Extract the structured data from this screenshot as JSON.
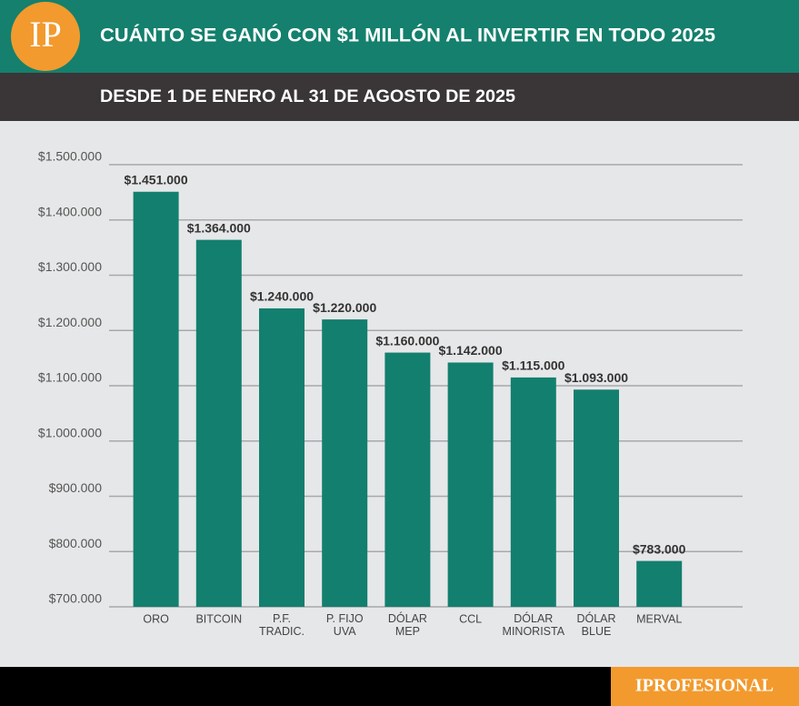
{
  "header": {
    "logo": "IP",
    "title": "CUÁNTO SE GANÓ CON $1 MILLÓN AL INVERTIR EN TODO 2025",
    "subtitle": "DESDE 1 DE ENERO AL 31 DE AGOSTO DE 2025"
  },
  "footer": {
    "brand": "IPROFESIONAL"
  },
  "chart_data": {
    "type": "bar",
    "categories": [
      "ORO",
      "BITCOIN",
      "P.F.\nTRADIC.",
      "P. FIJO\nUVA",
      "DÓLAR\nMEP",
      "CCL",
      "DÓLAR\nMINORISTA",
      "DÓLAR\nBLUE",
      "MERVAL"
    ],
    "values": [
      1451000,
      1364000,
      1240000,
      1220000,
      1160000,
      1142000,
      1115000,
      1093000,
      783000
    ],
    "value_labels": [
      "$1.451.000",
      "$1.364.000",
      "$1.240.000",
      "$1.220.000",
      "$1.160.000",
      "$1.142.000",
      "$1.115.000",
      "$1.093.000",
      "$783.000"
    ],
    "color": "#137f6f",
    "ylim": [
      700000,
      1500000
    ],
    "yticks": [
      {
        "value": 700000,
        "label": "$700.000"
      },
      {
        "value": 800000,
        "label": "$800.000"
      },
      {
        "value": 900000,
        "label": "$900.000"
      },
      {
        "value": 1000000,
        "label": "$1.000.000"
      },
      {
        "value": 1100000,
        "label": "$1.100.000"
      },
      {
        "value": 1200000,
        "label": "$1.200.000"
      },
      {
        "value": 1300000,
        "label": "$1.300.000"
      },
      {
        "value": 1400000,
        "label": "$1.400.000"
      },
      {
        "value": 1500000,
        "label": "$1.500.000"
      }
    ],
    "grid": true
  }
}
